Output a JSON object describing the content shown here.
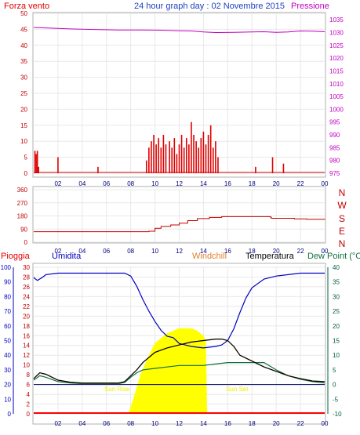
{
  "header": {
    "wind_title": "Forza vento",
    "date_title": "24 hour graph day : 02 Novembre 2015",
    "pressure_title": "Pressione"
  },
  "direction_labels": [
    "N",
    "W",
    "S",
    "E",
    "N"
  ],
  "bottom_header": {
    "rain": "Pioggia",
    "humidity": "Umidita",
    "windchill": "Windchill",
    "temperature": "Temperatura",
    "dewpoint": "Dew Point (°C"
  },
  "annotations": {
    "sunrise": "Sun Rise",
    "sunset": "Sun Set"
  },
  "colors": {
    "frame": "#b0b0b0",
    "grid": "#e8e8e8",
    "wind": "#e00000",
    "wind_dir": "#c00000",
    "pressure": "#c000c0",
    "humidity": "#0000c0",
    "temperature": "#000000",
    "dewpoint": "#107040",
    "windchill": "#e08030",
    "solar": "#ffff00",
    "rain": "#ff0000",
    "zero_line": "#000060",
    "left_axis": "#c00000",
    "humidity_axis": "#0000c0",
    "right_axis": "#006040"
  },
  "chart_data": [
    {
      "type": "bar",
      "title": "24 hour graph day : 02 Novembre 2015",
      "x_ticks": [
        "02",
        "04",
        "06",
        "08",
        "10",
        "12",
        "14",
        "16",
        "18",
        "20",
        "22",
        "00"
      ],
      "y_left_ticks": [
        "0",
        "5",
        "10",
        "15",
        "20",
        "25",
        "30",
        "35",
        "40",
        "45",
        "50"
      ],
      "ylim_left": [
        0,
        50
      ],
      "y_right_ticks": [
        "975",
        "980",
        "985",
        "990",
        "995",
        "1000",
        "1005",
        "1010",
        "1015",
        "1020",
        "1025",
        "1030",
        "1035"
      ],
      "ylim_right": [
        975,
        1037.5
      ],
      "wind_series": {
        "hours": [
          0.1,
          0.2,
          0.3,
          0.4,
          2.0,
          5.3,
          9.3,
          9.5,
          9.7,
          9.9,
          10.1,
          10.3,
          10.5,
          10.7,
          10.9,
          11.2,
          11.4,
          11.6,
          11.8,
          12.0,
          12.2,
          12.4,
          12.6,
          12.8,
          13.0,
          13.2,
          13.4,
          13.6,
          13.8,
          14.0,
          14.2,
          14.4,
          14.6,
          14.8,
          15.0,
          15.2,
          18.3,
          19.7,
          20.6
        ],
        "values": [
          7,
          6,
          7,
          2,
          5,
          2,
          4,
          8,
          10,
          12,
          9,
          11,
          8,
          12,
          9,
          10,
          8,
          11,
          6,
          9,
          12,
          8,
          11,
          9,
          16,
          12,
          10,
          8,
          11,
          13,
          9,
          12,
          15,
          8,
          10,
          5,
          2,
          5,
          3
        ]
      },
      "pressure_series": {
        "hours": [
          0,
          1,
          3,
          5,
          7,
          9,
          10.5,
          12,
          13,
          14,
          15,
          16.5,
          18,
          19,
          20,
          21,
          22,
          23,
          24
        ],
        "values": [
          1032.0,
          1031.8,
          1031.4,
          1031.2,
          1031.0,
          1031.0,
          1030.9,
          1030.7,
          1030.6,
          1030.2,
          1030.0,
          1030.1,
          1030.2,
          1030.3,
          1030.1,
          1030.2,
          1030.6,
          1030.5,
          1030.3
        ]
      }
    },
    {
      "type": "line",
      "x_ticks": [
        "02",
        "04",
        "06",
        "08",
        "10",
        "12",
        "14",
        "16",
        "18",
        "20",
        "22",
        "00"
      ],
      "y_ticks": [
        "0",
        "90",
        "180",
        "270",
        "360"
      ],
      "ylim": [
        0,
        360
      ],
      "series": [
        {
          "name": "Wind direction",
          "x": [
            0,
            1,
            3,
            5,
            7,
            8.5,
            9.5,
            10.0,
            10.5,
            11.3,
            12.0,
            12.7,
            13.5,
            14.5,
            15.5,
            16.5,
            18.0,
            19.5,
            19.6,
            21.5,
            22.5,
            24
          ],
          "y": [
            72,
            72,
            72,
            72,
            72,
            72,
            75,
            95,
            108,
            118,
            130,
            148,
            162,
            170,
            175,
            175,
            175,
            172,
            164,
            160,
            157,
            155
          ]
        }
      ]
    },
    {
      "type": "line",
      "x_ticks": [
        "02",
        "04",
        "06",
        "08",
        "10",
        "12",
        "14",
        "16",
        "18",
        "20",
        "22",
        "00"
      ],
      "y_humidity_ticks": [
        "0",
        "10",
        "20",
        "30",
        "40",
        "50",
        "60",
        "70",
        "80",
        "90",
        "100"
      ],
      "ylim_humidity": [
        0,
        100
      ],
      "y_left_ticks": [
        "0",
        "2",
        "4",
        "6",
        "8",
        "10",
        "12",
        "14",
        "16",
        "18",
        "20",
        "22",
        "24",
        "26",
        "28",
        "30"
      ],
      "ylim_left": [
        0,
        30
      ],
      "y_right_ticks": [
        "-10",
        "-5",
        "0",
        "5",
        "10",
        "15",
        "20",
        "25",
        "30",
        "35",
        "40"
      ],
      "ylim_right": [
        -10,
        40
      ],
      "series": [
        {
          "name": "Umidita",
          "x": [
            0,
            0.3,
            0.7,
            1,
            2,
            3,
            4,
            5,
            6,
            7,
            7.5,
            8,
            8.5,
            9,
            9.5,
            10,
            10.5,
            11,
            11.5,
            12,
            13,
            14,
            15,
            15.5,
            16,
            16.5,
            17,
            17.5,
            18,
            19,
            20,
            21,
            22,
            23,
            24
          ],
          "y": [
            93,
            91,
            93,
            95,
            96,
            96,
            96,
            96,
            96,
            96,
            96,
            94,
            87,
            78,
            70,
            63,
            57,
            53,
            52,
            48,
            46,
            45,
            46,
            47,
            50,
            58,
            69,
            79,
            86,
            92,
            94,
            95,
            96,
            96,
            96
          ]
        },
        {
          "name": "Temperatura",
          "x": [
            0,
            0.5,
            1,
            2,
            3,
            4,
            5,
            6,
            7,
            7.5,
            8,
            8.5,
            9,
            10,
            11,
            12,
            13,
            14,
            15,
            15.5,
            16,
            16.5,
            17,
            18,
            19,
            20,
            21,
            22,
            23,
            24
          ],
          "y": [
            2,
            4,
            3.5,
            1.5,
            0.8,
            0.5,
            0.5,
            0.5,
            0.5,
            1,
            3,
            5,
            7.5,
            11,
            12.5,
            13.5,
            14.5,
            15,
            15.5,
            15.5,
            15,
            13,
            10,
            8,
            6,
            4.5,
            3,
            2,
            1.2,
            1
          ]
        },
        {
          "name": "Dew Point",
          "x": [
            0,
            0.5,
            1,
            2,
            3,
            4,
            5,
            6,
            7,
            7.5,
            8,
            8.5,
            9,
            10,
            11,
            12,
            13,
            14,
            15,
            16,
            17,
            18,
            19,
            20,
            21,
            22,
            23,
            24
          ],
          "y": [
            1.5,
            3,
            2.5,
            1,
            0.5,
            0.3,
            0.3,
            0.3,
            0.3,
            0.7,
            2.5,
            4,
            5,
            5.5,
            6,
            6.5,
            6.5,
            6.5,
            7,
            7.5,
            7.5,
            7.5,
            7.5,
            5,
            3,
            1.8,
            1,
            0.5
          ]
        },
        {
          "name": "Solar",
          "x": [
            7.8,
            8.2,
            8.8,
            9.5,
            10,
            10.5,
            11,
            11.5,
            12,
            12.5,
            13,
            13.5,
            14,
            14.2,
            14.3
          ],
          "y": [
            0,
            3,
            8,
            12,
            14.5,
            15.5,
            16.5,
            17,
            17.5,
            17.5,
            17.5,
            17,
            16,
            15,
            0
          ]
        }
      ]
    }
  ]
}
